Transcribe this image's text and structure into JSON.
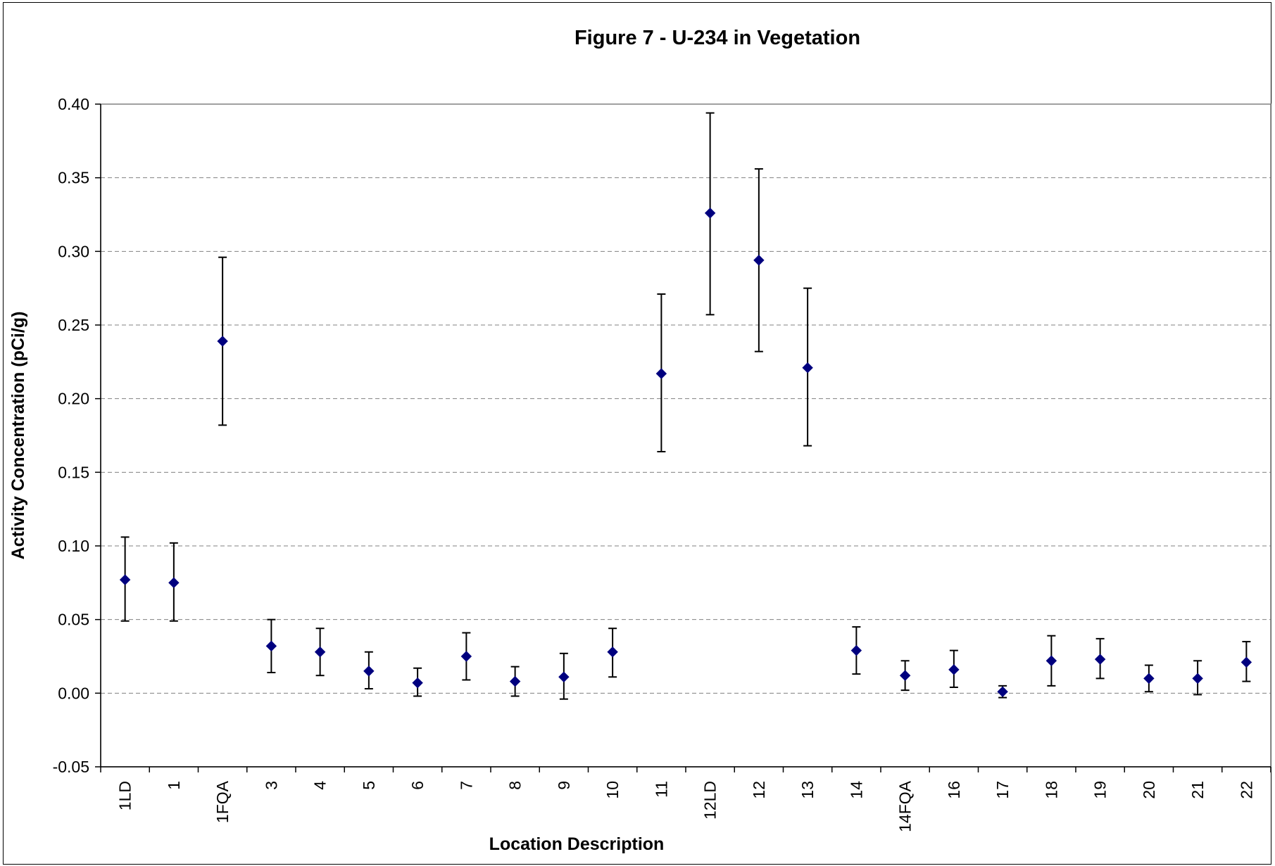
{
  "chart_data": {
    "type": "scatter",
    "title": "Figure 7 - U-234 in Vegetation",
    "xlabel": "Location Description",
    "ylabel": "Activity Concentration (pCi/g)",
    "ylim": [
      -0.05,
      0.4
    ],
    "yticks": [
      "-0.05",
      "0.00",
      "0.05",
      "0.10",
      "0.15",
      "0.20",
      "0.25",
      "0.30",
      "0.35",
      "0.40"
    ],
    "grid": true,
    "legend": "none",
    "categories": [
      "1LD",
      "1",
      "1FQA",
      "3",
      "4",
      "5",
      "6",
      "7",
      "8",
      "9",
      "10",
      "11",
      "12LD",
      "12",
      "13",
      "14",
      "14FQA",
      "16",
      "17",
      "18",
      "19",
      "20",
      "21",
      "22"
    ],
    "series": [
      {
        "values": [
          0.077,
          0.075,
          0.239,
          0.032,
          0.028,
          0.015,
          0.007,
          0.025,
          0.008,
          0.011,
          0.028,
          0.217,
          0.326,
          0.294,
          0.221,
          0.029,
          0.012,
          0.016,
          0.001,
          0.022,
          0.023,
          0.01,
          0.01,
          0.021
        ],
        "err_low": [
          0.049,
          0.049,
          0.182,
          0.014,
          0.012,
          0.003,
          -0.002,
          0.009,
          -0.002,
          -0.004,
          0.011,
          0.164,
          0.257,
          0.232,
          0.168,
          0.013,
          0.002,
          0.004,
          -0.003,
          0.005,
          0.01,
          0.001,
          -0.001,
          0.008
        ],
        "err_high": [
          0.106,
          0.102,
          0.296,
          0.05,
          0.044,
          0.028,
          0.017,
          0.041,
          0.018,
          0.027,
          0.044,
          0.271,
          0.394,
          0.356,
          0.275,
          0.045,
          0.022,
          0.029,
          0.005,
          0.039,
          0.037,
          0.019,
          0.022,
          0.035
        ],
        "color": "#00007f"
      }
    ]
  }
}
